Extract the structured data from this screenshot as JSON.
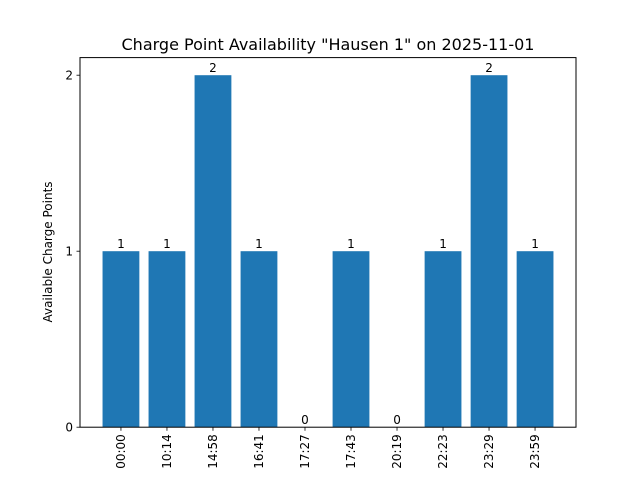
{
  "chart_data": {
    "type": "bar",
    "title": "Charge Point Availability \"Hausen 1\" on 2025-11-01",
    "xlabel": "",
    "ylabel": "Available Charge Points",
    "categories": [
      "00:00",
      "10:14",
      "14:58",
      "16:41",
      "17:27",
      "17:43",
      "20:19",
      "22:23",
      "23:29",
      "23:59"
    ],
    "values": [
      1,
      1,
      2,
      1,
      0,
      1,
      0,
      1,
      2,
      1
    ],
    "data_labels": [
      "1",
      "1",
      "2",
      "1",
      "0",
      "1",
      "0",
      "1",
      "2",
      "1"
    ],
    "ylim": [
      0,
      2.1
    ],
    "yticks": [
      0,
      1,
      2
    ],
    "ytick_labels": [
      "0",
      "1",
      "2"
    ],
    "bar_color": "#1f77b4",
    "grid": false,
    "legend": "none"
  }
}
